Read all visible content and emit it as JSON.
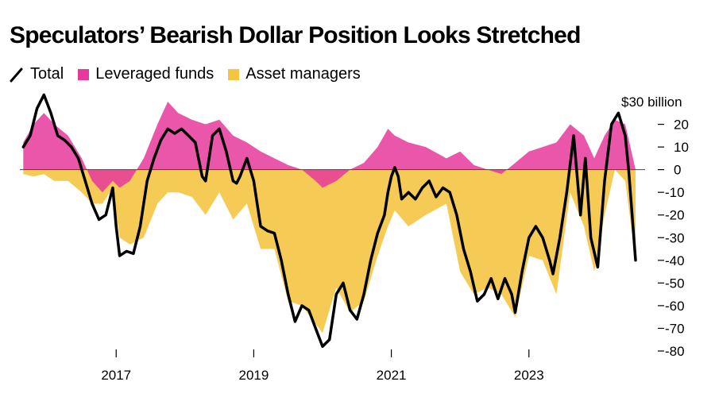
{
  "title": "Speculators’ Bearish Dollar Position Looks Stretched",
  "legend": [
    {
      "label": "Total",
      "kind": "line",
      "color": "#000000"
    },
    {
      "label": "Leveraged funds",
      "kind": "swatch",
      "color": "#e6399b"
    },
    {
      "label": "Asset managers",
      "kind": "swatch",
      "color": "#f5c542"
    }
  ],
  "chart_data": {
    "type": "area",
    "y_unit_label": "$30 billion",
    "ylim": [
      -80,
      30
    ],
    "y_ticks": [
      20,
      10,
      0,
      -10,
      -20,
      -30,
      -40,
      -50,
      -60,
      -70,
      -80
    ],
    "x_ticks": [
      "2017",
      "2019",
      "2021",
      "2023"
    ],
    "x_tick_years": [
      2017,
      2019,
      2021,
      2023
    ],
    "xlim": [
      2015.6,
      2024.55
    ],
    "colors": {
      "leveraged": "#e6399b",
      "asset": "#f5c542",
      "total": "#000000"
    },
    "series": [
      {
        "name": "Total",
        "points": [
          [
            2015.65,
            10
          ],
          [
            2015.75,
            15
          ],
          [
            2015.85,
            27
          ],
          [
            2015.95,
            33
          ],
          [
            2016.05,
            25
          ],
          [
            2016.15,
            15
          ],
          [
            2016.25,
            13
          ],
          [
            2016.35,
            10
          ],
          [
            2016.45,
            5
          ],
          [
            2016.55,
            -5
          ],
          [
            2016.65,
            -15
          ],
          [
            2016.75,
            -22
          ],
          [
            2016.85,
            -20
          ],
          [
            2016.95,
            -8
          ],
          [
            2017.0,
            -25
          ],
          [
            2017.05,
            -38
          ],
          [
            2017.15,
            -36
          ],
          [
            2017.25,
            -37
          ],
          [
            2017.35,
            -25
          ],
          [
            2017.45,
            -5
          ],
          [
            2017.55,
            5
          ],
          [
            2017.65,
            13
          ],
          [
            2017.75,
            18
          ],
          [
            2017.85,
            16
          ],
          [
            2017.95,
            18
          ],
          [
            2018.05,
            15
          ],
          [
            2018.15,
            12
          ],
          [
            2018.25,
            -3
          ],
          [
            2018.3,
            -5
          ],
          [
            2018.4,
            15
          ],
          [
            2018.5,
            18
          ],
          [
            2018.6,
            8
          ],
          [
            2018.7,
            -5
          ],
          [
            2018.75,
            -6
          ],
          [
            2018.8,
            -3
          ],
          [
            2018.9,
            5
          ],
          [
            2019.0,
            -5
          ],
          [
            2019.05,
            -15
          ],
          [
            2019.1,
            -25
          ],
          [
            2019.2,
            -27
          ],
          [
            2019.3,
            -28
          ],
          [
            2019.4,
            -40
          ],
          [
            2019.5,
            -55
          ],
          [
            2019.6,
            -67
          ],
          [
            2019.7,
            -60
          ],
          [
            2019.8,
            -62
          ],
          [
            2019.9,
            -70
          ],
          [
            2020.0,
            -78
          ],
          [
            2020.1,
            -75
          ],
          [
            2020.2,
            -55
          ],
          [
            2020.3,
            -50
          ],
          [
            2020.4,
            -62
          ],
          [
            2020.5,
            -66
          ],
          [
            2020.6,
            -55
          ],
          [
            2020.7,
            -40
          ],
          [
            2020.8,
            -28
          ],
          [
            2020.9,
            -20
          ],
          [
            2020.95,
            -10
          ],
          [
            2021.0,
            -3
          ],
          [
            2021.05,
            1
          ],
          [
            2021.1,
            -3
          ],
          [
            2021.15,
            -13
          ],
          [
            2021.25,
            -10
          ],
          [
            2021.35,
            -13
          ],
          [
            2021.45,
            -8
          ],
          [
            2021.55,
            -5
          ],
          [
            2021.65,
            -12
          ],
          [
            2021.75,
            -8
          ],
          [
            2021.85,
            -10
          ],
          [
            2021.95,
            -20
          ],
          [
            2022.05,
            -35
          ],
          [
            2022.15,
            -45
          ],
          [
            2022.25,
            -58
          ],
          [
            2022.35,
            -55
          ],
          [
            2022.45,
            -48
          ],
          [
            2022.55,
            -57
          ],
          [
            2022.65,
            -48
          ],
          [
            2022.75,
            -55
          ],
          [
            2022.8,
            -63
          ],
          [
            2022.9,
            -45
          ],
          [
            2023.0,
            -30
          ],
          [
            2023.1,
            -25
          ],
          [
            2023.2,
            -30
          ],
          [
            2023.3,
            -40
          ],
          [
            2023.35,
            -46
          ],
          [
            2023.45,
            -30
          ],
          [
            2023.55,
            -10
          ],
          [
            2023.65,
            15
          ],
          [
            2023.75,
            -20
          ],
          [
            2023.82,
            5
          ],
          [
            2023.9,
            -30
          ],
          [
            2024.0,
            -43
          ],
          [
            2024.1,
            -5
          ],
          [
            2024.2,
            20
          ],
          [
            2024.3,
            25
          ],
          [
            2024.4,
            15
          ],
          [
            2024.45,
            0
          ],
          [
            2024.5,
            -20
          ],
          [
            2024.55,
            -40
          ]
        ]
      },
      {
        "name": "Leveraged funds",
        "points": [
          [
            2015.65,
            12
          ],
          [
            2015.8,
            20
          ],
          [
            2015.95,
            25
          ],
          [
            2016.1,
            20
          ],
          [
            2016.3,
            15
          ],
          [
            2016.5,
            5
          ],
          [
            2016.65,
            -5
          ],
          [
            2016.8,
            -10
          ],
          [
            2016.95,
            -5
          ],
          [
            2017.05,
            -8
          ],
          [
            2017.2,
            -5
          ],
          [
            2017.4,
            5
          ],
          [
            2017.6,
            20
          ],
          [
            2017.75,
            30
          ],
          [
            2017.9,
            25
          ],
          [
            2018.1,
            22
          ],
          [
            2018.3,
            20
          ],
          [
            2018.5,
            22
          ],
          [
            2018.7,
            15
          ],
          [
            2018.9,
            12
          ],
          [
            2019.1,
            8
          ],
          [
            2019.3,
            5
          ],
          [
            2019.5,
            2
          ],
          [
            2019.7,
            0
          ],
          [
            2019.9,
            -5
          ],
          [
            2020.0,
            -8
          ],
          [
            2020.2,
            -5
          ],
          [
            2020.4,
            0
          ],
          [
            2020.6,
            3
          ],
          [
            2020.8,
            10
          ],
          [
            2020.95,
            18
          ],
          [
            2021.05,
            15
          ],
          [
            2021.25,
            12
          ],
          [
            2021.5,
            10
          ],
          [
            2021.8,
            5
          ],
          [
            2022.0,
            8
          ],
          [
            2022.2,
            2
          ],
          [
            2022.4,
            0
          ],
          [
            2022.6,
            -2
          ],
          [
            2022.8,
            3
          ],
          [
            2023.0,
            8
          ],
          [
            2023.2,
            10
          ],
          [
            2023.4,
            12
          ],
          [
            2023.6,
            20
          ],
          [
            2023.8,
            15
          ],
          [
            2023.95,
            5
          ],
          [
            2024.1,
            15
          ],
          [
            2024.25,
            22
          ],
          [
            2024.4,
            20
          ],
          [
            2024.55,
            0
          ]
        ]
      },
      {
        "name": "Asset managers",
        "points": [
          [
            2015.65,
            -2
          ],
          [
            2015.8,
            -3
          ],
          [
            2015.95,
            -2
          ],
          [
            2016.1,
            -5
          ],
          [
            2016.3,
            -5
          ],
          [
            2016.5,
            -10
          ],
          [
            2016.65,
            -15
          ],
          [
            2016.8,
            -15
          ],
          [
            2016.95,
            -8
          ],
          [
            2017.05,
            -30
          ],
          [
            2017.2,
            -33
          ],
          [
            2017.4,
            -30
          ],
          [
            2017.6,
            -15
          ],
          [
            2017.75,
            -10
          ],
          [
            2017.9,
            -10
          ],
          [
            2018.1,
            -12
          ],
          [
            2018.3,
            -20
          ],
          [
            2018.5,
            -10
          ],
          [
            2018.7,
            -22
          ],
          [
            2018.9,
            -15
          ],
          [
            2019.1,
            -35
          ],
          [
            2019.3,
            -35
          ],
          [
            2019.5,
            -58
          ],
          [
            2019.7,
            -60
          ],
          [
            2019.9,
            -68
          ],
          [
            2020.0,
            -72
          ],
          [
            2020.2,
            -52
          ],
          [
            2020.4,
            -63
          ],
          [
            2020.6,
            -58
          ],
          [
            2020.8,
            -38
          ],
          [
            2020.95,
            -25
          ],
          [
            2021.05,
            -18
          ],
          [
            2021.25,
            -25
          ],
          [
            2021.5,
            -20
          ],
          [
            2021.8,
            -15
          ],
          [
            2022.0,
            -45
          ],
          [
            2022.2,
            -55
          ],
          [
            2022.4,
            -52
          ],
          [
            2022.6,
            -55
          ],
          [
            2022.8,
            -65
          ],
          [
            2023.0,
            -38
          ],
          [
            2023.2,
            -40
          ],
          [
            2023.4,
            -55
          ],
          [
            2023.6,
            -10
          ],
          [
            2023.8,
            -25
          ],
          [
            2023.95,
            -45
          ],
          [
            2024.1,
            -20
          ],
          [
            2024.25,
            0
          ],
          [
            2024.4,
            -5
          ],
          [
            2024.55,
            -40
          ]
        ]
      }
    ]
  }
}
